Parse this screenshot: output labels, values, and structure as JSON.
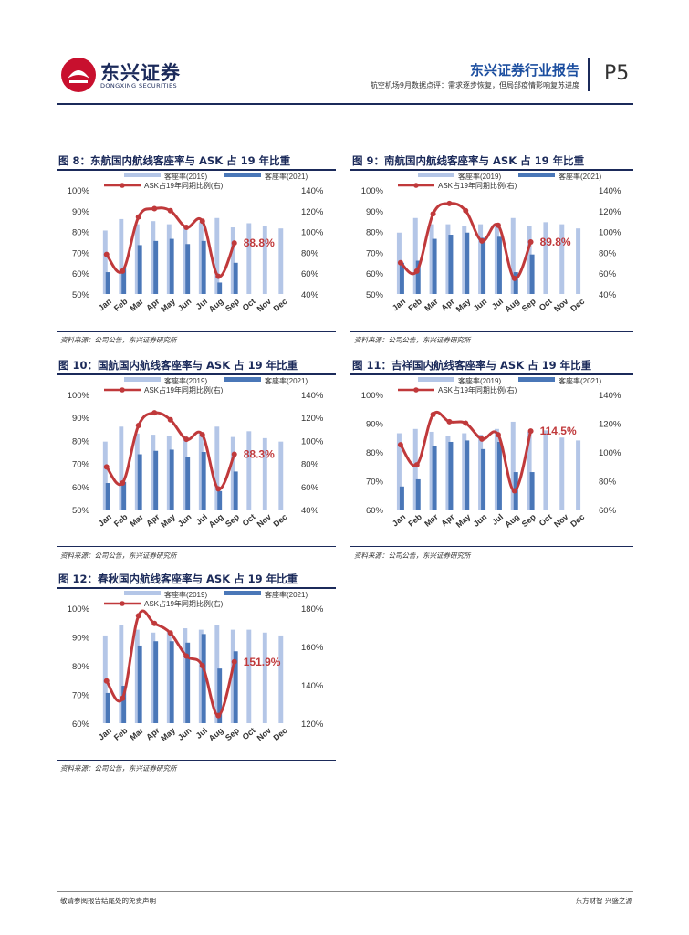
{
  "header": {
    "logo_cn": "东兴证券",
    "logo_en": "DONGXING SECURITIES",
    "report_title": "东兴证券行业报告",
    "report_subtitle": "航空机场9月数据点评：需求逐步恢复，但局部疫情影响复苏进度",
    "page": "P5"
  },
  "colors": {
    "bar2019": "#b4c6e7",
    "bar2021": "#4a77b8",
    "line": "#c0393b",
    "navy": "#1b2a5a",
    "logo_red": "#c8102e"
  },
  "legend": {
    "s2019": "客座率(2019)",
    "s2021": "客座率(2021)",
    "ratio": "ASK占19年同期比例(右)"
  },
  "footer": {
    "left": "敬请参阅报告结尾处的免责声明",
    "right": "东方财智  兴盛之源"
  },
  "chart_data": [
    {
      "id": "fig8",
      "type": "bar",
      "title": "图 8：东航国内航线客座率与 ASK 占 19 年比重",
      "source": "资料来源：公司公告，东兴证券研究所",
      "categories": [
        "Jan",
        "Feb",
        "Mar",
        "Apr",
        "May",
        "Jun",
        "Jul",
        "Aug",
        "Sep",
        "Oct",
        "Nov",
        "Dec"
      ],
      "series": [
        {
          "name": "客座率(2019)",
          "axis": "left",
          "values": [
            80.5,
            86,
            83.5,
            85,
            83.5,
            83,
            84.5,
            86.5,
            82,
            84,
            82.5,
            81.5
          ]
        },
        {
          "name": "客座率(2021)",
          "axis": "left",
          "values": [
            60.5,
            62.5,
            73.5,
            75.5,
            76.5,
            74,
            75.5,
            55.5,
            65,
            null,
            null,
            null
          ]
        },
        {
          "name": "ASK占19年同期比例(右)",
          "axis": "right",
          "type": "line",
          "values": [
            78,
            62,
            114,
            122,
            120,
            104,
            110,
            57,
            89,
            null,
            null,
            null
          ]
        }
      ],
      "ylim_left": [
        50,
        100
      ],
      "yticks_left": [
        "50%",
        "60%",
        "70%",
        "80%",
        "90%",
        "100%"
      ],
      "ylim_right": [
        40,
        140
      ],
      "yticks_right": [
        "40%",
        "60%",
        "80%",
        "100%",
        "120%",
        "140%"
      ],
      "annotation": "88.8%"
    },
    {
      "id": "fig9",
      "type": "bar",
      "title": "图 9：南航国内航线客座率与 ASK 占 19 年比重",
      "source": "资料来源：公司公告，东兴证券研究所",
      "categories": [
        "Jan",
        "Feb",
        "Mar",
        "Apr",
        "May",
        "Jun",
        "Jul",
        "Aug",
        "Sep",
        "Oct",
        "Nov",
        "Dec"
      ],
      "series": [
        {
          "name": "客座率(2019)",
          "axis": "left",
          "values": [
            79.5,
            86.5,
            83.5,
            83.5,
            82.5,
            83.5,
            83.5,
            86.5,
            82.5,
            84.5,
            83.5,
            81.5
          ]
        },
        {
          "name": "客座率(2021)",
          "axis": "left",
          "values": [
            65,
            66,
            76.5,
            78.5,
            79.5,
            77,
            77.5,
            60.5,
            69,
            null,
            null,
            null
          ]
        },
        {
          "name": "ASK占19年同期比例(右)",
          "axis": "right",
          "type": "line",
          "values": [
            70,
            62,
            117,
            127,
            120,
            91,
            106,
            55,
            90,
            null,
            null,
            null
          ]
        }
      ],
      "ylim_left": [
        50,
        100
      ],
      "yticks_left": [
        "50%",
        "60%",
        "70%",
        "80%",
        "90%",
        "100%"
      ],
      "ylim_right": [
        40,
        140
      ],
      "yticks_right": [
        "40%",
        "60%",
        "80%",
        "100%",
        "120%",
        "140%"
      ],
      "annotation": "89.8%"
    },
    {
      "id": "fig10",
      "type": "bar",
      "title": "图 10：国航国内航线客座率与 ASK 占 19 年比重",
      "source": "资料来源：公司公告，东兴证券研究所",
      "categories": [
        "Jan",
        "Feb",
        "Mar",
        "Apr",
        "May",
        "Jun",
        "Jul",
        "Aug",
        "Sep",
        "Oct",
        "Nov",
        "Dec"
      ],
      "series": [
        {
          "name": "客座率(2019)",
          "axis": "left",
          "values": [
            79.5,
            86,
            83,
            82.5,
            82,
            82,
            83,
            86,
            81.5,
            84,
            81,
            79.5
          ]
        },
        {
          "name": "客座率(2021)",
          "axis": "left",
          "values": [
            61.5,
            62,
            74,
            75.5,
            76,
            73,
            75,
            58,
            66.5,
            null,
            null,
            null
          ]
        },
        {
          "name": "ASK占19年同期比例(右)",
          "axis": "right",
          "type": "line",
          "values": [
            77,
            63,
            113,
            124,
            118,
            101,
            105,
            58,
            88,
            null,
            null,
            null
          ]
        }
      ],
      "ylim_left": [
        50,
        100
      ],
      "yticks_left": [
        "50%",
        "60%",
        "70%",
        "80%",
        "90%",
        "100%"
      ],
      "ylim_right": [
        40,
        140
      ],
      "yticks_right": [
        "40%",
        "60%",
        "80%",
        "100%",
        "120%",
        "140%"
      ],
      "annotation": "88.3%"
    },
    {
      "id": "fig11",
      "type": "bar",
      "title": "图 11：吉祥国内航线客座率与 ASK 占 19 年比重",
      "source": "资料来源：公司公告，东兴证券研究所",
      "categories": [
        "Jan",
        "Feb",
        "Mar",
        "Apr",
        "May",
        "Jun",
        "Jul",
        "Aug",
        "Sep",
        "Oct",
        "Nov",
        "Dec"
      ],
      "series": [
        {
          "name": "客座率(2019)",
          "axis": "left",
          "values": [
            86.5,
            88,
            87,
            85.5,
            86.5,
            86,
            88,
            90.5,
            87,
            87.5,
            85,
            84
          ]
        },
        {
          "name": "客座率(2021)",
          "axis": "left",
          "values": [
            68,
            70.5,
            82,
            83.5,
            84,
            81,
            83.5,
            73,
            73,
            null,
            null,
            null
          ]
        },
        {
          "name": "ASK占19年同期比例(右)",
          "axis": "right",
          "type": "line",
          "values": [
            105,
            91,
            126,
            121,
            120,
            109,
            112,
            73,
            114.5,
            null,
            null,
            null
          ]
        }
      ],
      "ylim_left": [
        60,
        100
      ],
      "yticks_left": [
        "60%",
        "70%",
        "80%",
        "90%",
        "100%"
      ],
      "ylim_right": [
        60,
        140
      ],
      "yticks_right": [
        "60%",
        "80%",
        "100%",
        "120%",
        "140%"
      ],
      "annotation": "114.5%"
    },
    {
      "id": "fig12",
      "type": "bar",
      "title": "图 12：春秋国内航线客座率与 ASK 占 19 年比重",
      "source": "资料来源：公司公告，东兴证券研究所",
      "categories": [
        "Jan",
        "Feb",
        "Mar",
        "Apr",
        "May",
        "Jun",
        "Jul",
        "Aug",
        "Sep",
        "Oct",
        "Nov",
        "Dec"
      ],
      "series": [
        {
          "name": "客座率(2019)",
          "axis": "left",
          "values": [
            90.5,
            94,
            92.5,
            91.5,
            92,
            93,
            92.5,
            94,
            92.5,
            92.5,
            91.5,
            90.5
          ]
        },
        {
          "name": "客座率(2021)",
          "axis": "left",
          "values": [
            70.5,
            73,
            87,
            88.5,
            88.5,
            88,
            91,
            79,
            85,
            null,
            null,
            null
          ]
        },
        {
          "name": "ASK占19年同期比例(右)",
          "axis": "right",
          "type": "line",
          "values": [
            142,
            133,
            176,
            172,
            167,
            155,
            150,
            124,
            152,
            null,
            null,
            null
          ]
        }
      ],
      "ylim_left": [
        60,
        100
      ],
      "yticks_left": [
        "60%",
        "70%",
        "80%",
        "90%",
        "100%"
      ],
      "ylim_right": [
        120,
        180
      ],
      "yticks_right": [
        "120%",
        "140%",
        "160%",
        "180%"
      ],
      "annotation": "151.9%"
    }
  ]
}
